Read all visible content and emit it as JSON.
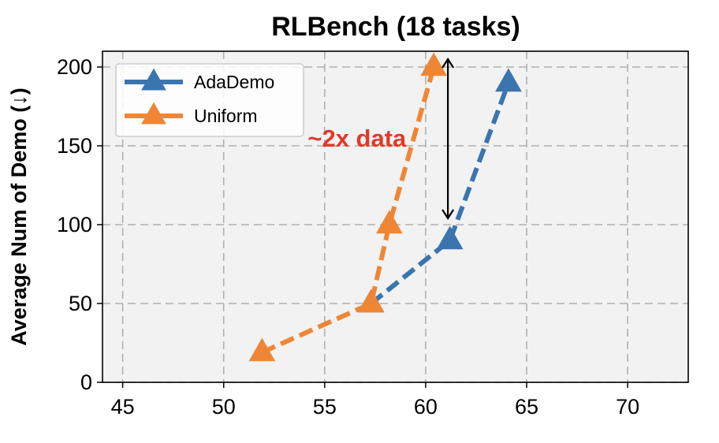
{
  "chart_data": {
    "type": "line",
    "title": "RLBench (18 tasks)",
    "xlabel": "",
    "ylabel": "Average Num of Demo (↓)",
    "xlim": [
      44,
      73
    ],
    "ylim": [
      0,
      210
    ],
    "xticks": [
      45,
      50,
      55,
      60,
      65,
      70
    ],
    "yticks": [
      0,
      50,
      100,
      150,
      200
    ],
    "grid": true,
    "legend_position": "top-left",
    "series": [
      {
        "name": "AdaDemo",
        "color": "#3a75af",
        "marker": "triangle",
        "linestyle": "dashed",
        "points": [
          [
            57.3,
            50
          ],
          [
            61.2,
            90
          ],
          [
            64.1,
            190
          ]
        ]
      },
      {
        "name": "Uniform",
        "color": "#ef8636",
        "marker": "triangle",
        "linestyle": "dashed",
        "points": [
          [
            51.9,
            19
          ],
          [
            57.3,
            50
          ],
          [
            58.2,
            100
          ],
          [
            60.4,
            200
          ]
        ]
      }
    ],
    "annotations": [
      {
        "text": "~2x data",
        "color": "#e03a2a",
        "x": 56.6,
        "y": 155
      }
    ],
    "arrows": [
      {
        "x": 61.1,
        "y_from": 205,
        "y_to": 104,
        "style": "double-headed"
      }
    ]
  }
}
